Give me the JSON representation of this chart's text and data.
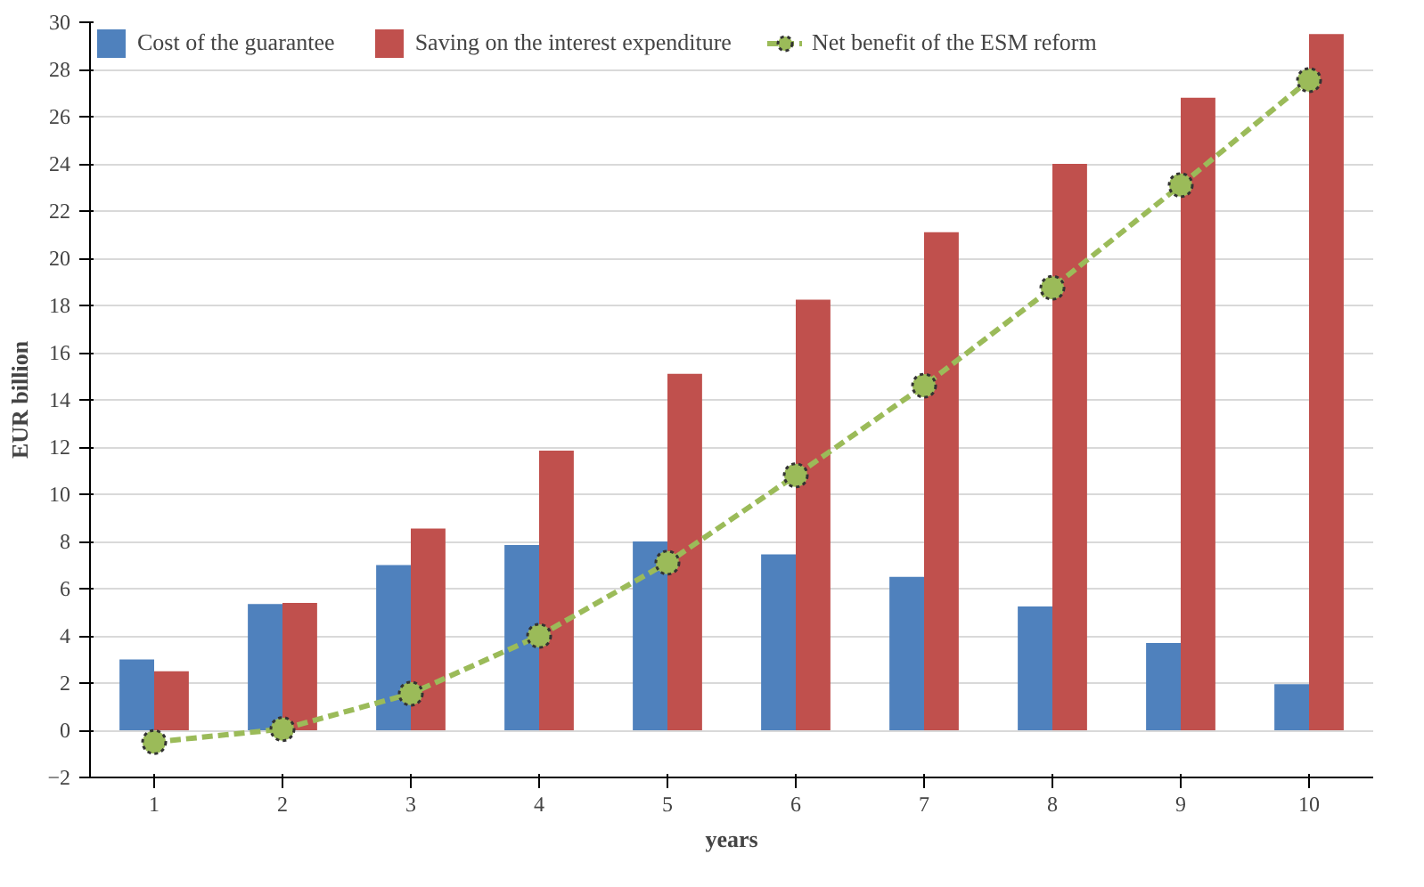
{
  "chart_data": {
    "type": "bar",
    "xlabel": "years",
    "ylabel": "EUR billion",
    "categories": [
      "1",
      "2",
      "3",
      "4",
      "5",
      "6",
      "7",
      "8",
      "9",
      "10"
    ],
    "series": [
      {
        "name": "Cost of the guarantee",
        "color": "#4f81bd",
        "values": [
          3.0,
          5.35,
          7.0,
          7.85,
          8.0,
          7.45,
          6.5,
          5.25,
          3.7,
          1.95
        ]
      },
      {
        "name": "Saving on the interest expenditure",
        "color": "#c0504d",
        "values": [
          2.5,
          5.4,
          8.55,
          11.85,
          15.1,
          18.25,
          21.1,
          24.0,
          26.8,
          29.5
        ]
      },
      {
        "name": "Net benefit of the ESM reform",
        "color": "#9bbb59",
        "type": "line",
        "marker": "circle",
        "line_style": "dashed",
        "values": [
          -0.5,
          0.05,
          1.55,
          4.0,
          7.1,
          10.8,
          14.6,
          18.75,
          23.1,
          27.55
        ]
      }
    ],
    "ylim": [
      -2,
      30
    ],
    "yticks": [
      -2,
      0,
      2,
      4,
      6,
      8,
      10,
      12,
      14,
      16,
      18,
      20,
      22,
      24,
      26,
      28,
      30
    ],
    "grid": "y",
    "legend": "top"
  }
}
